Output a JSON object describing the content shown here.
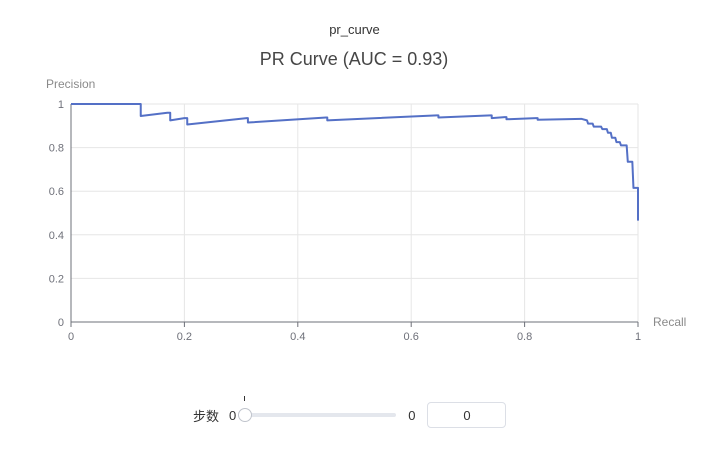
{
  "panel": {
    "title": "pr_curve"
  },
  "chart_data": {
    "type": "line",
    "title": "PR Curve (AUC = 0.93)",
    "xlabel": "Recall",
    "ylabel": "Precision",
    "xlim": [
      0,
      1
    ],
    "ylim": [
      0,
      1
    ],
    "x_ticks": [
      "0",
      "0.2",
      "0.4",
      "0.6",
      "0.8",
      "1"
    ],
    "y_ticks": [
      "0",
      "0.2",
      "0.4",
      "0.6",
      "0.8",
      "1"
    ],
    "grid": true,
    "line_color": "#5470c6",
    "series": [
      {
        "points": [
          [
            0.0,
            1.0
          ],
          [
            0.123,
            1.0
          ],
          [
            0.123,
            0.945
          ],
          [
            0.17,
            0.96
          ],
          [
            0.175,
            0.96
          ],
          [
            0.175,
            0.925
          ],
          [
            0.2,
            0.935
          ],
          [
            0.205,
            0.935
          ],
          [
            0.205,
            0.906
          ],
          [
            0.31,
            0.935
          ],
          [
            0.312,
            0.935
          ],
          [
            0.312,
            0.915
          ],
          [
            0.45,
            0.938
          ],
          [
            0.452,
            0.938
          ],
          [
            0.452,
            0.925
          ],
          [
            0.645,
            0.948
          ],
          [
            0.648,
            0.948
          ],
          [
            0.648,
            0.938
          ],
          [
            0.74,
            0.948
          ],
          [
            0.742,
            0.948
          ],
          [
            0.742,
            0.935
          ],
          [
            0.765,
            0.94
          ],
          [
            0.768,
            0.94
          ],
          [
            0.768,
            0.93
          ],
          [
            0.82,
            0.935
          ],
          [
            0.823,
            0.935
          ],
          [
            0.823,
            0.928
          ],
          [
            0.9,
            0.932
          ],
          [
            0.91,
            0.925
          ],
          [
            0.912,
            0.91
          ],
          [
            0.92,
            0.91
          ],
          [
            0.922,
            0.896
          ],
          [
            0.935,
            0.896
          ],
          [
            0.937,
            0.885
          ],
          [
            0.945,
            0.885
          ],
          [
            0.947,
            0.868
          ],
          [
            0.952,
            0.868
          ],
          [
            0.954,
            0.845
          ],
          [
            0.96,
            0.845
          ],
          [
            0.962,
            0.825
          ],
          [
            0.968,
            0.825
          ],
          [
            0.97,
            0.81
          ],
          [
            0.98,
            0.81
          ],
          [
            0.982,
            0.735
          ],
          [
            0.99,
            0.735
          ],
          [
            0.992,
            0.615
          ],
          [
            1.0,
            0.615
          ],
          [
            1.0,
            0.465
          ]
        ]
      }
    ]
  },
  "step_control": {
    "label": "步数",
    "min": "0",
    "max": "0",
    "value": "0",
    "fraction": 0
  }
}
